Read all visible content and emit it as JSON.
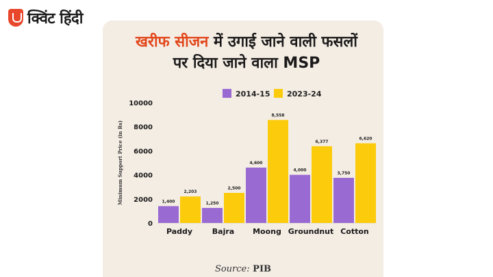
{
  "brand": {
    "logo_text": "क्विंट हिंदी",
    "accent": "#e8472c"
  },
  "heading": {
    "highlight": "खरीफ सीजन",
    "rest_line1": " में उगाई जाने वाली फसलों",
    "line2": "पर दिया जाने वाला MSP"
  },
  "chart_data": {
    "type": "bar",
    "categories": [
      "Paddy",
      "Bajra",
      "Moong",
      "Groundnut",
      "Cotton"
    ],
    "series": [
      {
        "name": "2014-15",
        "color": "#9a6ad3",
        "values": [
          1400,
          1250,
          4600,
          4000,
          3750
        ],
        "labels": [
          "1,400",
          "1,250",
          "4,600",
          "4,000",
          "3,750"
        ]
      },
      {
        "name": "2023-24",
        "color": "#fccb0c",
        "values": [
          2203,
          2500,
          8558,
          6377,
          6620
        ],
        "labels": [
          "2,203",
          "2,500",
          "8,558",
          "6,377",
          "6,620"
        ]
      }
    ],
    "ylabel": "Minimum Support Price (in Rs)",
    "xlabel": "",
    "ylim": [
      0,
      10000
    ],
    "yticks": [
      0,
      2000,
      4000,
      6000,
      8000,
      10000
    ],
    "grid": false,
    "legend_position": "top-center"
  },
  "source": {
    "label": "Source:",
    "value": "PIB"
  }
}
